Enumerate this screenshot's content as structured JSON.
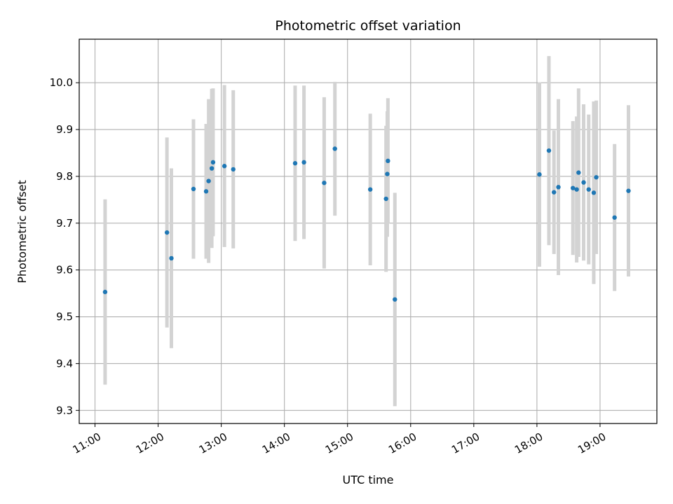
{
  "chart_data": {
    "type": "scatter",
    "title": "Photometric offset variation",
    "xlabel": "UTC time",
    "ylabel": "Photometric offset",
    "x_unit": "hours UTC",
    "xlim": [
      10.75,
      19.9
    ],
    "ylim": [
      9.272,
      10.093
    ],
    "grid": true,
    "colors": {
      "points": "#1f77b4",
      "errorbars": "#d3d3d3",
      "grid": "#b0b0b0",
      "axes": "#000000"
    },
    "xticks": [
      {
        "value": 11,
        "label": "11:00"
      },
      {
        "value": 12,
        "label": "12:00"
      },
      {
        "value": 13,
        "label": "13:00"
      },
      {
        "value": 14,
        "label": "14:00"
      },
      {
        "value": 15,
        "label": "15:00"
      },
      {
        "value": 16,
        "label": "16:00"
      },
      {
        "value": 17,
        "label": "17:00"
      },
      {
        "value": 18,
        "label": "18:00"
      },
      {
        "value": 19,
        "label": "19:00"
      }
    ],
    "yticks": [
      {
        "value": 9.3,
        "label": "9.3"
      },
      {
        "value": 9.4,
        "label": "9.4"
      },
      {
        "value": 9.5,
        "label": "9.5"
      },
      {
        "value": 9.6,
        "label": "9.6"
      },
      {
        "value": 9.7,
        "label": "9.7"
      },
      {
        "value": 9.8,
        "label": "9.8"
      },
      {
        "value": 9.9,
        "label": "9.9"
      },
      {
        "value": 10.0,
        "label": "10.0"
      }
    ],
    "points": [
      {
        "x": 11.16,
        "y": 9.553,
        "yerr": 0.198
      },
      {
        "x": 12.14,
        "y": 9.68,
        "yerr": 0.203
      },
      {
        "x": 12.21,
        "y": 9.625,
        "yerr": 0.192
      },
      {
        "x": 12.56,
        "y": 9.773,
        "yerr": 0.149
      },
      {
        "x": 12.76,
        "y": 9.768,
        "yerr": 0.144
      },
      {
        "x": 12.8,
        "y": 9.79,
        "yerr": 0.175
      },
      {
        "x": 12.85,
        "y": 9.817,
        "yerr": 0.17
      },
      {
        "x": 12.87,
        "y": 9.83,
        "yerr": 0.158
      },
      {
        "x": 13.05,
        "y": 9.822,
        "yerr": 0.173
      },
      {
        "x": 13.19,
        "y": 9.815,
        "yerr": 0.169
      },
      {
        "x": 14.17,
        "y": 9.828,
        "yerr": 0.166
      },
      {
        "x": 14.31,
        "y": 9.83,
        "yerr": 0.164
      },
      {
        "x": 14.63,
        "y": 9.786,
        "yerr": 0.183
      },
      {
        "x": 14.8,
        "y": 9.859,
        "yerr": 0.143
      },
      {
        "x": 15.36,
        "y": 9.772,
        "yerr": 0.162
      },
      {
        "x": 15.61,
        "y": 9.752,
        "yerr": 0.156
      },
      {
        "x": 15.63,
        "y": 9.805,
        "yerr": 0.134
      },
      {
        "x": 15.64,
        "y": 9.833,
        "yerr": 0.134
      },
      {
        "x": 15.75,
        "y": 9.537,
        "yerr": 0.228
      },
      {
        "x": 18.04,
        "y": 9.804,
        "yerr": 0.197
      },
      {
        "x": 18.19,
        "y": 9.855,
        "yerr": 0.202
      },
      {
        "x": 18.27,
        "y": 9.766,
        "yerr": 0.132
      },
      {
        "x": 18.34,
        "y": 9.777,
        "yerr": 0.188
      },
      {
        "x": 18.57,
        "y": 9.775,
        "yerr": 0.143
      },
      {
        "x": 18.63,
        "y": 9.772,
        "yerr": 0.156
      },
      {
        "x": 18.66,
        "y": 9.808,
        "yerr": 0.18
      },
      {
        "x": 18.74,
        "y": 9.787,
        "yerr": 0.167
      },
      {
        "x": 18.82,
        "y": 9.772,
        "yerr": 0.16
      },
      {
        "x": 18.9,
        "y": 9.765,
        "yerr": 0.195
      },
      {
        "x": 18.94,
        "y": 9.798,
        "yerr": 0.164
      },
      {
        "x": 19.23,
        "y": 9.712,
        "yerr": 0.157
      },
      {
        "x": 19.45,
        "y": 9.769,
        "yerr": 0.183
      }
    ]
  }
}
